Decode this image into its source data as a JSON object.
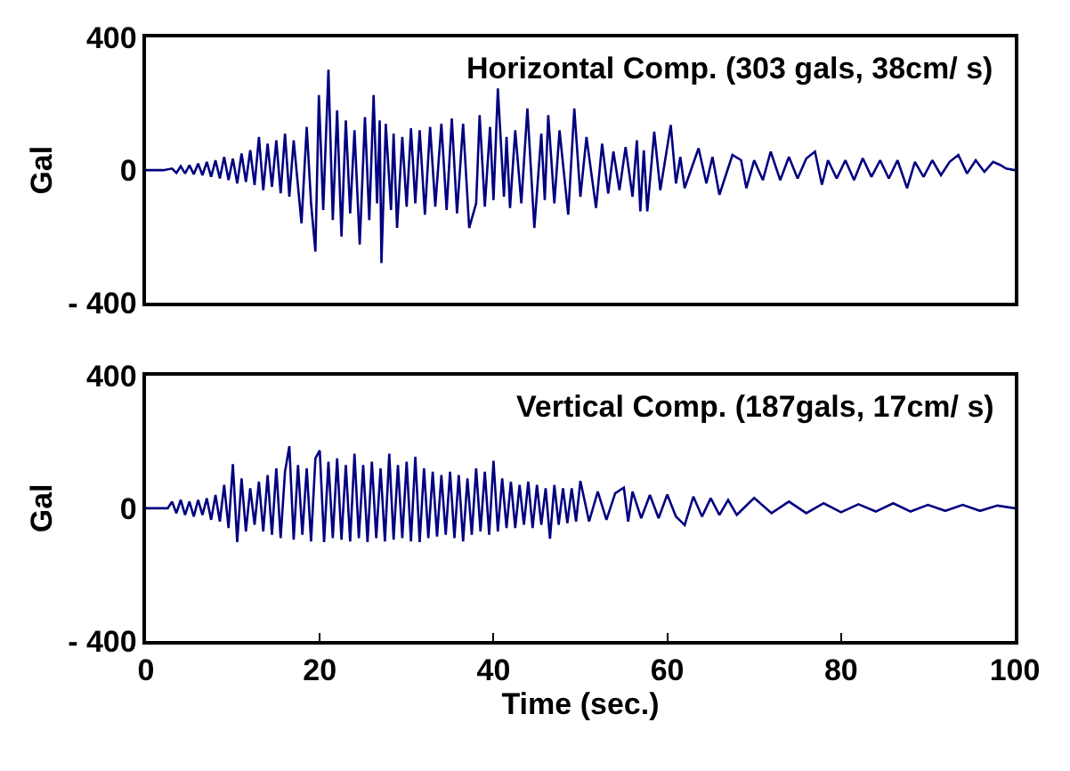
{
  "chart_data": [
    {
      "type": "line",
      "title": "Horizontal Comp. (303 gals, 38cm/ s)",
      "ylabel": "Gal",
      "color": "#000080",
      "xlim": [
        0,
        100
      ],
      "ylim": [
        -400,
        400
      ],
      "yticks": [
        {
          "value": -400,
          "label": "- 400"
        },
        0,
        400
      ],
      "tick_labels": "y",
      "grid": false,
      "x": [
        0,
        2,
        3,
        3.5,
        4,
        4.5,
        5,
        5.5,
        6,
        6.5,
        7,
        7.5,
        8,
        8.5,
        9,
        9.5,
        10,
        10.5,
        11,
        11.5,
        12,
        12.5,
        13,
        13.5,
        14,
        14.5,
        15,
        15.5,
        16,
        16.5,
        17,
        17.9,
        18.5,
        19,
        19.5,
        19.9,
        20.4,
        21,
        21.5,
        22,
        22.5,
        23,
        23.5,
        24,
        24.6,
        25.2,
        25.7,
        26.2,
        26.6,
        26.9,
        27.1,
        27.6,
        28.2,
        28.5,
        28.9,
        29.5,
        30,
        30.5,
        31,
        31.5,
        32.1,
        32.7,
        33.3,
        34,
        34.6,
        35.2,
        35.8,
        36.5,
        37.2,
        38,
        38.4,
        39,
        39.6,
        40,
        40.5,
        41.2,
        41.5,
        41.9,
        42.5,
        43.2,
        43.9,
        44.7,
        45.5,
        45.9,
        46.3,
        47,
        47.6,
        48.6,
        49.3,
        50,
        50.7,
        51.8,
        52.5,
        53.2,
        53.8,
        54.5,
        55.2,
        56,
        56.5,
        56.9,
        57.3,
        57.7,
        58.5,
        59.2,
        60.4,
        61,
        61.5,
        62,
        63.6,
        64.5,
        65.2,
        66,
        67.5,
        68.5,
        69.1,
        70,
        71,
        71.9,
        73,
        74,
        75,
        76,
        77,
        77.8,
        78.5,
        79.5,
        80.5,
        81.5,
        82.5,
        83.5,
        84.5,
        85.5,
        86.5,
        87.6,
        88.5,
        89.5,
        90.5,
        91.5,
        92.5,
        93.5,
        94.5,
        95.5,
        96.5,
        97.5,
        98.3,
        99,
        100
      ],
      "values": [
        0,
        0,
        5,
        -8,
        12,
        -10,
        15,
        -12,
        20,
        -15,
        25,
        -20,
        30,
        -25,
        40,
        -30,
        35,
        -40,
        50,
        -35,
        60,
        -45,
        100,
        -60,
        80,
        -50,
        90,
        -70,
        110,
        -80,
        90,
        -160,
        130,
        -100,
        -245,
        226,
        -120,
        303,
        -150,
        180,
        -200,
        150,
        -130,
        120,
        -224,
        160,
        -150,
        226,
        -100,
        150,
        -280,
        140,
        -120,
        110,
        -174,
        100,
        -110,
        126,
        -100,
        120,
        -134,
        130,
        -110,
        140,
        -120,
        156,
        -130,
        140,
        -174,
        -100,
        166,
        -110,
        130,
        -90,
        246,
        -80,
        100,
        -114,
        120,
        -100,
        186,
        -174,
        110,
        -90,
        166,
        -100,
        120,
        -134,
        186,
        -80,
        100,
        -114,
        80,
        -70,
        56,
        -60,
        70,
        -80,
        90,
        -124,
        60,
        -124,
        116,
        -60,
        136,
        -40,
        40,
        -54,
        66,
        -40,
        40,
        -74,
        46,
        30,
        -54,
        30,
        -30,
        56,
        -30,
        40,
        -25,
        35,
        56,
        -44,
        30,
        -25,
        30,
        -30,
        36,
        -20,
        30,
        -25,
        30,
        -54,
        25,
        -20,
        30,
        -15,
        25,
        46,
        -10,
        30,
        -5,
        25,
        16,
        5,
        0
      ]
    },
    {
      "type": "line",
      "title": "Vertical Comp. (187gals, 17cm/ s)",
      "ylabel": "Gal",
      "xlabel": "Time (sec.)",
      "color": "#000080",
      "xlim": [
        0,
        100
      ],
      "xticks": [
        0,
        20,
        40,
        60,
        80,
        100
      ],
      "ylim": [
        -400,
        400
      ],
      "yticks": [
        {
          "value": -400,
          "label": "- 400"
        },
        0,
        400
      ],
      "grid": false,
      "x": [
        0,
        2.5,
        3,
        3.5,
        4,
        4.5,
        5,
        5.5,
        6,
        6.5,
        7,
        7.5,
        8,
        8.5,
        9,
        9.5,
        10,
        10.5,
        11,
        11.5,
        12,
        12.5,
        13,
        13.5,
        14,
        14.5,
        15,
        15.5,
        16,
        16.5,
        17,
        17.5,
        18,
        18.5,
        19,
        19.5,
        20,
        20.5,
        21,
        21.5,
        22,
        22.5,
        23,
        23.5,
        24,
        24.5,
        25,
        25.5,
        26,
        26.5,
        27,
        27.5,
        28,
        28.5,
        29,
        29.5,
        30,
        30.5,
        31,
        31.5,
        32,
        32.5,
        33,
        33.5,
        34,
        34.5,
        35,
        35.5,
        36,
        36.5,
        37,
        37.5,
        38,
        38.5,
        39,
        39.5,
        40,
        40.5,
        41,
        41.5,
        42,
        42.5,
        43,
        43.5,
        44,
        44.5,
        45,
        45.5,
        46,
        46.5,
        47,
        47.5,
        48,
        48.5,
        49,
        49.5,
        50,
        51,
        52,
        53,
        54,
        55,
        55.5,
        56,
        57,
        58,
        59,
        60,
        61,
        62,
        63,
        64,
        65,
        66,
        67,
        68,
        70,
        72,
        74,
        76,
        78,
        80,
        82,
        84,
        86,
        88,
        90,
        92,
        94,
        96,
        98,
        100
      ],
      "values": [
        0,
        0,
        20,
        -15,
        25,
        -20,
        20,
        -25,
        25,
        -20,
        30,
        -35,
        40,
        -40,
        70,
        -60,
        133,
        -102,
        90,
        -70,
        60,
        -50,
        80,
        -70,
        100,
        -80,
        120,
        -90,
        110,
        187,
        -95,
        130,
        -80,
        120,
        -100,
        150,
        174,
        -102,
        140,
        -90,
        150,
        -95,
        130,
        -100,
        164,
        -90,
        130,
        -102,
        140,
        -90,
        120,
        -100,
        164,
        -95,
        130,
        -90,
        140,
        -100,
        155,
        -102,
        120,
        -90,
        110,
        -85,
        100,
        -80,
        110,
        -90,
        100,
        -100,
        90,
        -80,
        120,
        -70,
        110,
        -80,
        143,
        -70,
        90,
        -60,
        80,
        -60,
        70,
        -50,
        80,
        -60,
        70,
        -50,
        60,
        -92,
        70,
        -50,
        60,
        -45,
        60,
        -40,
        82,
        -40,
        50,
        -35,
        45,
        62,
        -40,
        50,
        -30,
        40,
        -30,
        41,
        -25,
        -51,
        35,
        -25,
        30,
        -20,
        25,
        -20,
        31,
        -15,
        20,
        -15,
        15,
        -12,
        12,
        -10,
        15,
        -10,
        10,
        -8,
        10,
        -8,
        8,
        0
      ]
    }
  ]
}
